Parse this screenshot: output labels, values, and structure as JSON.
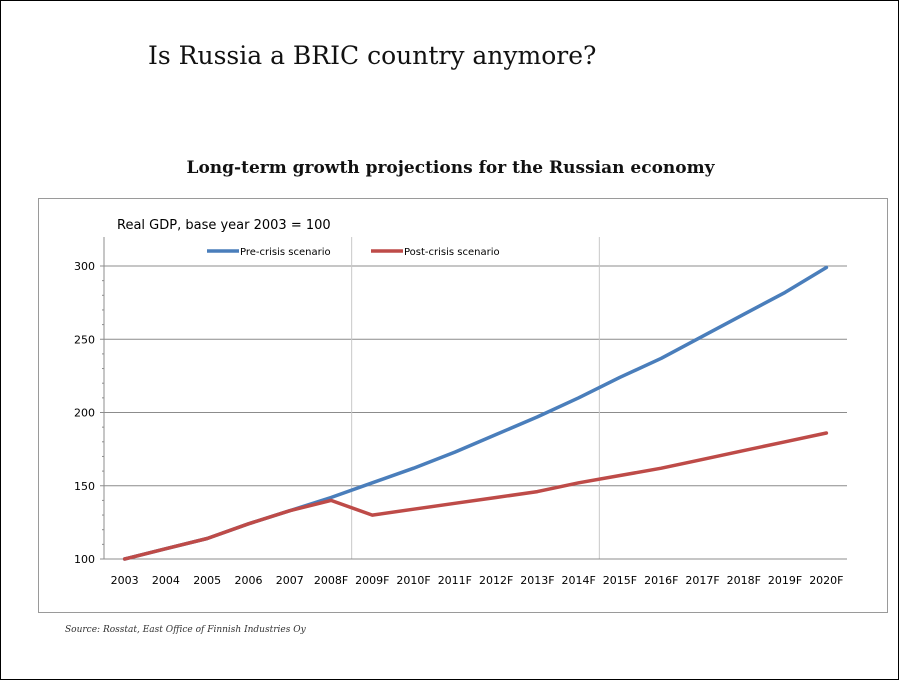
{
  "slide": {
    "title": "Is Russia a BRIC country anymore?",
    "source": "Source: Rosstat, East Office of Finnish Industries Oy"
  },
  "chart_data": {
    "type": "line",
    "title": "Long-term growth projections for the Russian economy",
    "ylabel": "Real GDP, base year 2003 = 100",
    "xlabel": "",
    "categories": [
      "2003",
      "2004",
      "2005",
      "2006",
      "2007",
      "2008F",
      "2009F",
      "2010F",
      "2011F",
      "2012F",
      "2013F",
      "2014F",
      "2015F",
      "2016F",
      "2017F",
      "2018F",
      "2019F",
      "2020F"
    ],
    "ylim": [
      100,
      300
    ],
    "yticks": [
      100,
      150,
      200,
      250,
      300
    ],
    "grid": "vertical lines at 2008F and 2014F",
    "legend_position": "top",
    "series": [
      {
        "name": "Pre-crisis scenario",
        "color": "#4a7ebb",
        "values": [
          100,
          107,
          114,
          124,
          133,
          142,
          152,
          162,
          173,
          185,
          197,
          210,
          224,
          237,
          252,
          267,
          282,
          299
        ]
      },
      {
        "name": "Post-crisis scenario",
        "color": "#be4b48",
        "values": [
          100,
          107,
          114,
          124,
          133,
          140,
          130,
          134,
          138,
          142,
          146,
          152,
          157,
          162,
          168,
          174,
          180,
          186
        ]
      }
    ]
  }
}
